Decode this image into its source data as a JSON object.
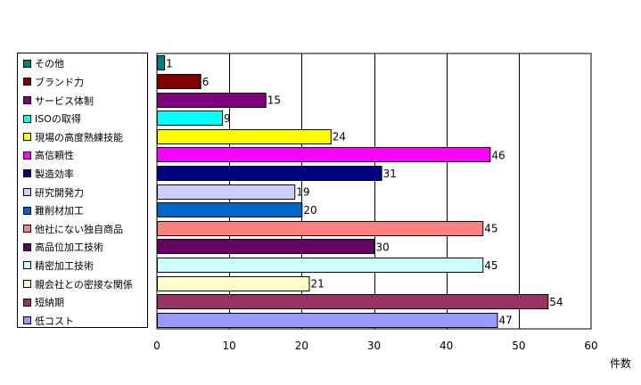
{
  "chart_data": {
    "type": "bar",
    "orientation": "horizontal",
    "categories": [
      "その他",
      "ブランド力",
      "サービス体制",
      "ISOの取得",
      "現場の高度熟練技能",
      "高信頼性",
      "製造効率",
      "研究開発力",
      "難削材加工",
      "他社にない独自商品",
      "高品位加工技術",
      "精密加工技術",
      "親会社との密接な関係",
      "短納期",
      "低コスト"
    ],
    "values": [
      1,
      6,
      15,
      9,
      24,
      46,
      31,
      19,
      20,
      45,
      30,
      45,
      21,
      54,
      47
    ],
    "colors": [
      "#008080",
      "#800000",
      "#800080",
      "#00ffff",
      "#ffff00",
      "#ff00ff",
      "#000080",
      "#ccccff",
      "#0066cc",
      "#ff8080",
      "#660066",
      "#ccffff",
      "#ffffcc",
      "#993366",
      "#9999ff"
    ],
    "xlim": [
      0,
      60
    ],
    "xticks": [
      0,
      10,
      20,
      30,
      40,
      50,
      60
    ],
    "xlabel": "件数",
    "ylabel": "",
    "title": "",
    "grid": true,
    "legend_position": "left"
  }
}
